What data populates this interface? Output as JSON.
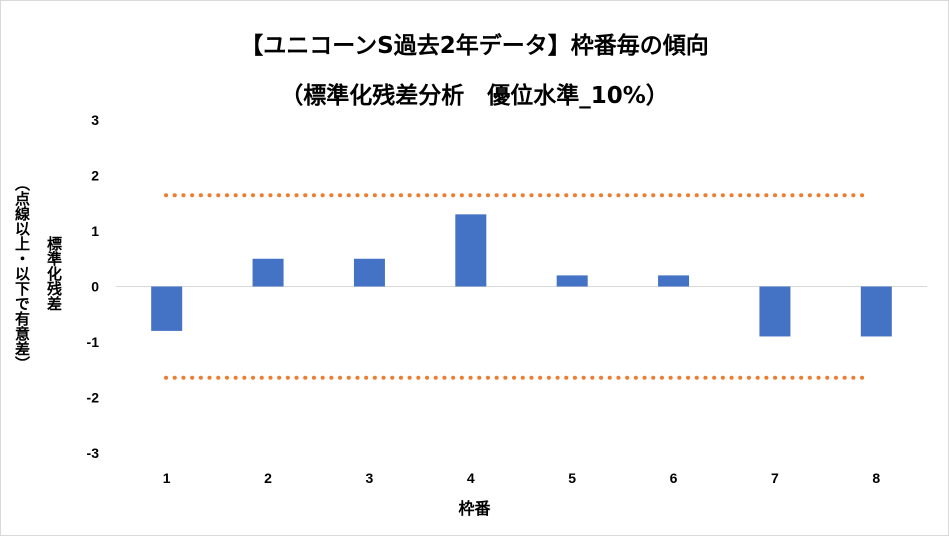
{
  "chart_data": {
    "type": "bar",
    "title": "【ユニコーンS過去2年データ】枠番毎の傾向",
    "subtitle": "（標準化残差分析　優位水準_10%）",
    "xlabel": "枠番",
    "ylabel_lines": [
      "標準化残差",
      "（点線以上・以下で有意差）"
    ],
    "categories": [
      "1",
      "2",
      "3",
      "4",
      "5",
      "6",
      "7",
      "8"
    ],
    "values": [
      -0.8,
      0.5,
      0.5,
      1.3,
      0.2,
      0.2,
      -0.9,
      -0.9
    ],
    "ylim": [
      -3,
      3
    ],
    "yticks": [
      "3",
      "2",
      "1",
      "0",
      "-1",
      "-2",
      "-3"
    ],
    "threshold_lines": [
      1.645,
      -1.645
    ],
    "grid": false,
    "colors": {
      "bar": "#4472C4",
      "threshold": "#ED7D31",
      "axis": "#d9d9d9"
    }
  }
}
